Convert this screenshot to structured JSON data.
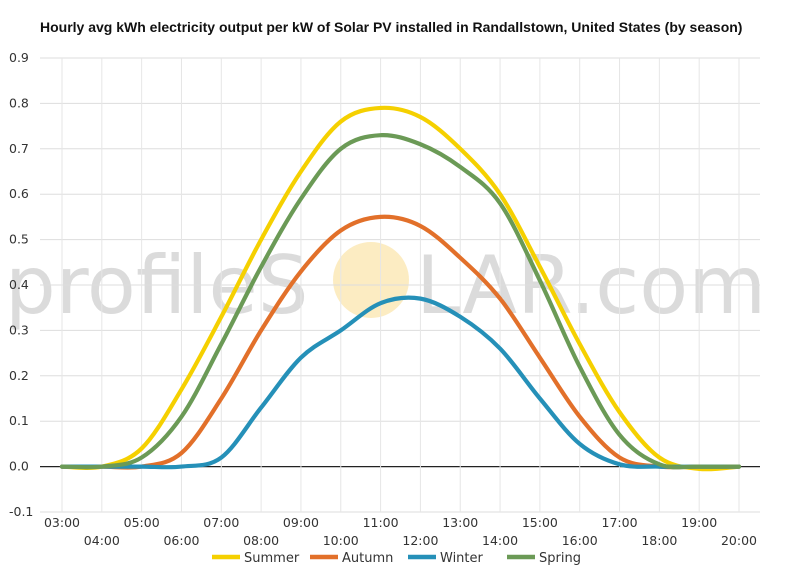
{
  "chart_data": {
    "type": "line",
    "title": "Hourly avg kWh electricity output per kW of Solar PV installed in Randallstown, United States (by season)",
    "xlabel": "",
    "ylabel": "",
    "categories": [
      "03:00",
      "04:00",
      "05:00",
      "06:00",
      "07:00",
      "08:00",
      "09:00",
      "10:00",
      "11:00",
      "12:00",
      "13:00",
      "14:00",
      "15:00",
      "16:00",
      "17:00",
      "18:00",
      "19:00",
      "20:00"
    ],
    "ylim": [
      -0.1,
      0.9
    ],
    "yticks": [
      -0.1,
      0.0,
      0.1,
      0.2,
      0.3,
      0.4,
      0.5,
      0.6,
      0.7,
      0.8,
      0.9
    ],
    "grid": true,
    "legend_position": "bottom",
    "series": [
      {
        "name": "Summer",
        "color": "#f5d000",
        "values": [
          0.0,
          0.0,
          0.04,
          0.17,
          0.33,
          0.5,
          0.65,
          0.76,
          0.79,
          0.77,
          0.7,
          0.6,
          0.44,
          0.27,
          0.12,
          0.02,
          -0.005,
          0.0
        ]
      },
      {
        "name": "Autumn",
        "color": "#e2702a",
        "values": [
          0.0,
          0.0,
          0.0,
          0.03,
          0.15,
          0.3,
          0.43,
          0.52,
          0.55,
          0.53,
          0.46,
          0.37,
          0.24,
          0.11,
          0.02,
          0.0,
          0.0,
          0.0
        ]
      },
      {
        "name": "Winter",
        "color": "#2590b8",
        "values": [
          0.0,
          0.0,
          0.0,
          0.0,
          0.02,
          0.13,
          0.24,
          0.3,
          0.36,
          0.37,
          0.33,
          0.26,
          0.15,
          0.05,
          0.005,
          0.0,
          0.0,
          0.0
        ]
      },
      {
        "name": "Spring",
        "color": "#6b9a56",
        "values": [
          0.0,
          0.0,
          0.02,
          0.11,
          0.27,
          0.44,
          0.59,
          0.7,
          0.73,
          0.71,
          0.66,
          0.58,
          0.41,
          0.22,
          0.07,
          0.005,
          0.0,
          0.0
        ]
      }
    ]
  },
  "watermark": {
    "text_left": "profileS",
    "text_right": "LAR.com",
    "sun_color": "#fbe3a6"
  }
}
